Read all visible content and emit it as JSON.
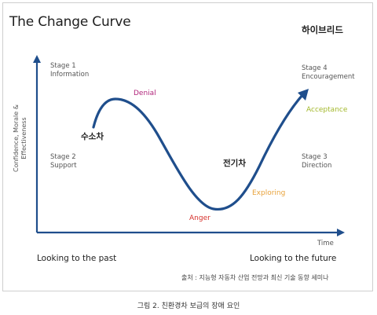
{
  "title": "The Change Curve",
  "category": "하이브리드",
  "y_axis_label_line1": "Confidence, Morale &",
  "y_axis_label_line2": "Effectiveness",
  "x_axis_label": "Time",
  "stages": {
    "stage1": {
      "number": "Stage 1",
      "name": "Information"
    },
    "stage2": {
      "number": "Stage 2",
      "name": "Support"
    },
    "stage3": {
      "number": "Stage 3",
      "name": "Direction"
    },
    "stage4": {
      "number": "Stage 4",
      "name": "Encouragement"
    }
  },
  "curve_labels": {
    "denial": "Denial",
    "anger": "Anger",
    "exploring": "Exploring",
    "acceptance": "Acceptance"
  },
  "korean_labels": {
    "hydrogen": "수소차",
    "electric": "전기차"
  },
  "bottom": {
    "past": "Looking to the past",
    "future": "Looking to the future"
  },
  "source": "출처 : 지능형 자동차 산업 전망과 최신 기술 동향 세미나",
  "caption": "그림 2. 친환경차 보급의 장애 요인",
  "colors": {
    "curve": "#1f4e8c",
    "axis": "#1f4e8c",
    "denial": "#b0247a",
    "anger": "#d6302b",
    "exploring": "#e8a23a",
    "acceptance": "#a3b82b"
  }
}
